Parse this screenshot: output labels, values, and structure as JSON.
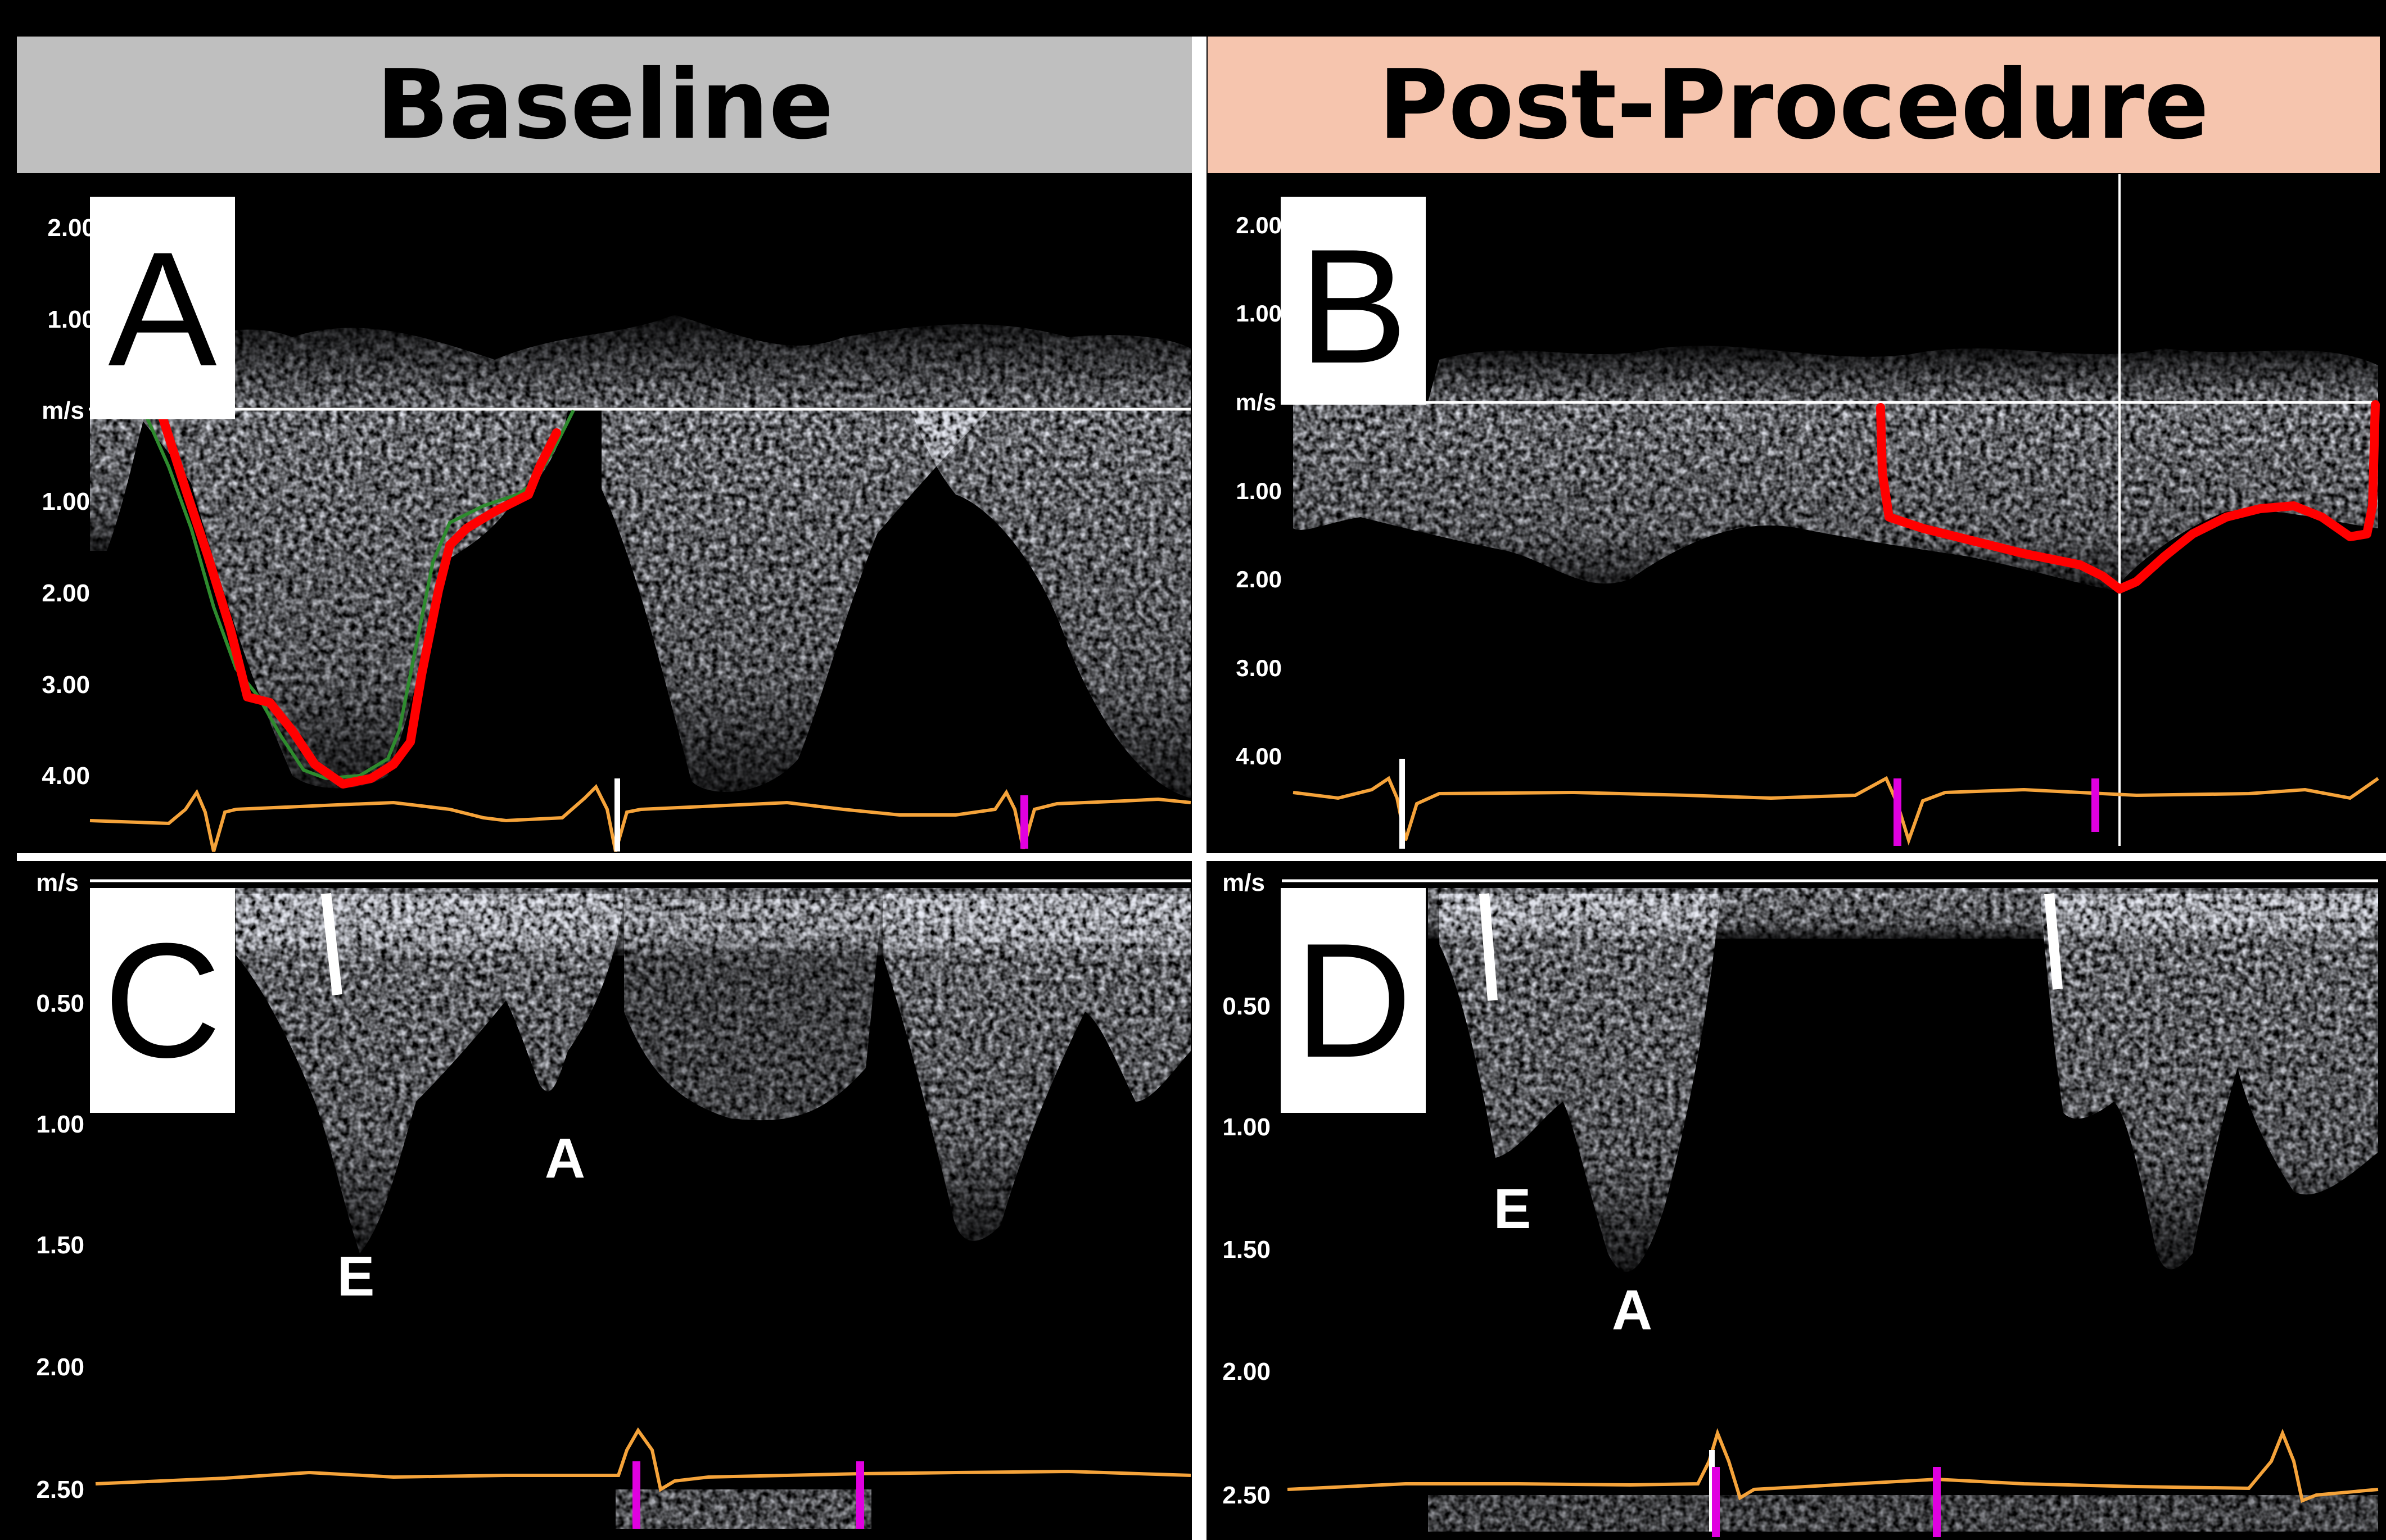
{
  "headers": {
    "left": "Baseline",
    "right": "Post-Procedure"
  },
  "colors": {
    "left_header_bg": "#bfbfbf",
    "right_header_bg": "#f6c5ae",
    "trace": "#ff0000",
    "ecg": "#f5a33a",
    "marker": "#e000e0",
    "doppler": "#d4d8ea"
  },
  "panels": {
    "A": {
      "label": "A",
      "unit": "m/s",
      "positive_ticks": [
        "2.00",
        "1.00"
      ],
      "negative_ticks": [
        "1.00",
        "2.00",
        "3.00",
        "4.00"
      ]
    },
    "B": {
      "label": "B",
      "unit": "m/s",
      "positive_ticks": [
        "2.00",
        "1.00"
      ],
      "negative_ticks": [
        "1.00",
        "2.00",
        "3.00",
        "4.00"
      ]
    },
    "C": {
      "label": "C",
      "unit": "m/s",
      "ticks": [
        "0.50",
        "1.00",
        "1.50",
        "2.00",
        "2.50"
      ],
      "wave_labels": {
        "e": "E",
        "a": "A"
      }
    },
    "D": {
      "label": "D",
      "unit": "m/s",
      "ticks": [
        "0.50",
        "1.00",
        "1.50",
        "2.00",
        "2.50"
      ],
      "wave_labels": {
        "e": "E",
        "a": "A"
      }
    }
  }
}
